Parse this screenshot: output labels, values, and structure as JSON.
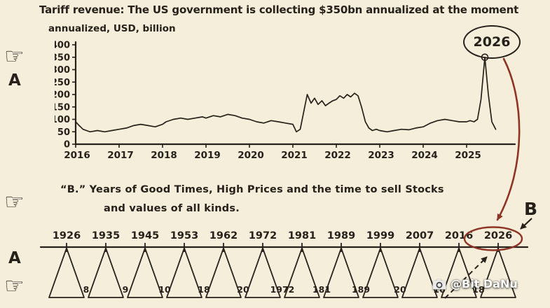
{
  "page": {
    "title": "Tariff revenue: The US government is collecting $350bn annualized at the moment",
    "subtitle": "annualized, USD, billion",
    "watermark": "@Bit DaNu"
  },
  "annotations": {
    "pointer_icon": "☞",
    "label_a_top": "A",
    "label_a_bottom": "A",
    "label_b": "B",
    "circled_year_top": "2026",
    "note_line1": "“B.” Years of Good Times, High Prices and the time to sell Stocks",
    "note_line2": "and values of all kinds."
  },
  "colors": {
    "background": "#f4eeda",
    "ink": "#26211b",
    "accent_red": "#8e3424"
  },
  "chart_data": [
    {
      "type": "line",
      "title": "Tariff revenue: The US government is collecting $350bn annualized at the moment",
      "ylabel": "annualized, USD, billion",
      "xlabel": "",
      "ylim": [
        0,
        400
      ],
      "grid": false,
      "yticks": [
        0,
        50,
        100,
        150,
        200,
        250,
        300,
        350,
        400
      ],
      "xticks": [
        2016,
        2017,
        2018,
        2019,
        2020,
        2021,
        2022,
        2023,
        2024,
        2025
      ],
      "annotation": {
        "label": "2026",
        "points_to": {
          "x": 2025.42,
          "y": 350
        }
      },
      "series": [
        {
          "name": "Tariff revenue (annualized, USD bn)",
          "x": [
            2016.0,
            2016.08,
            2016.17,
            2016.25,
            2016.33,
            2016.5,
            2016.67,
            2016.83,
            2017.0,
            2017.17,
            2017.33,
            2017.5,
            2017.67,
            2017.83,
            2018.0,
            2018.08,
            2018.25,
            2018.42,
            2018.58,
            2018.75,
            2018.92,
            2019.0,
            2019.17,
            2019.33,
            2019.5,
            2019.67,
            2019.83,
            2020.0,
            2020.17,
            2020.33,
            2020.5,
            2020.67,
            2020.83,
            2021.0,
            2021.08,
            2021.17,
            2021.25,
            2021.33,
            2021.42,
            2021.5,
            2021.58,
            2021.67,
            2021.75,
            2021.83,
            2021.92,
            2022.0,
            2022.08,
            2022.17,
            2022.25,
            2022.33,
            2022.42,
            2022.5,
            2022.58,
            2022.67,
            2022.75,
            2022.83,
            2022.92,
            2023.0,
            2023.17,
            2023.33,
            2023.5,
            2023.67,
            2023.83,
            2024.0,
            2024.17,
            2024.33,
            2024.5,
            2024.67,
            2024.83,
            2025.0,
            2025.08,
            2025.17,
            2025.25,
            2025.33,
            2025.42,
            2025.5,
            2025.58,
            2025.67
          ],
          "y": [
            90,
            75,
            60,
            55,
            50,
            55,
            50,
            55,
            60,
            65,
            75,
            80,
            75,
            70,
            80,
            90,
            100,
            105,
            100,
            105,
            110,
            105,
            115,
            110,
            120,
            115,
            105,
            100,
            90,
            85,
            95,
            90,
            85,
            80,
            50,
            60,
            130,
            200,
            165,
            185,
            160,
            175,
            155,
            165,
            175,
            180,
            195,
            185,
            200,
            190,
            205,
            195,
            150,
            90,
            65,
            55,
            60,
            55,
            50,
            55,
            60,
            58,
            65,
            70,
            85,
            95,
            100,
            95,
            90,
            90,
            95,
            90,
            100,
            180,
            350,
            200,
            90,
            60
          ]
        }
      ]
    },
    {
      "type": "table",
      "title": "Years of Good Times, High Prices and the time to sell Stocks and values of all kinds",
      "years": [
        "1926",
        "1935",
        "1945",
        "1953",
        "1962",
        "1972",
        "1981",
        "1989",
        "1999",
        "2007",
        "2016",
        "2026"
      ],
      "interval_labels": [
        "8",
        "9",
        "10",
        "18",
        "20",
        "1972",
        "181",
        "189",
        "20",
        "16",
        "18"
      ],
      "highlighted_year": "2026"
    }
  ]
}
